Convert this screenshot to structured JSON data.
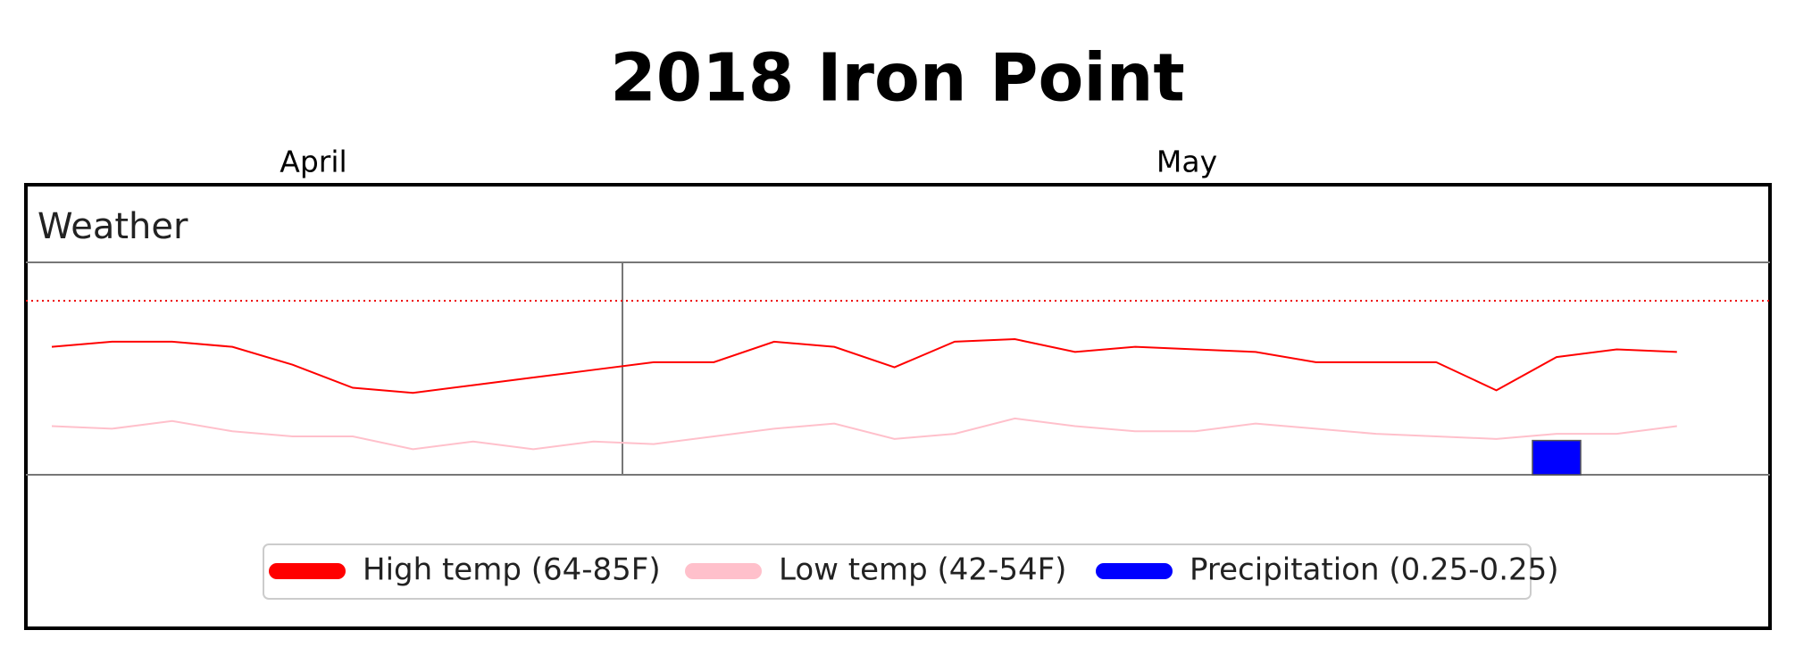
{
  "chart_data": {
    "type": "line",
    "title": "2018 Iron Point",
    "months": [
      "April",
      "May"
    ],
    "panel_title": "Weather",
    "ylim": [
      32,
      115
    ],
    "y2lim": [
      0,
      1.55
    ],
    "hline": 100,
    "series": [
      {
        "name": "High temp (64-85F)",
        "color": "#ff0000",
        "values": [
          82,
          84,
          84,
          82,
          75,
          66,
          64,
          67,
          70,
          73,
          76,
          76,
          84,
          82,
          74,
          84,
          85,
          80,
          82,
          81,
          80,
          76,
          76,
          76,
          65,
          78,
          81,
          80
        ]
      },
      {
        "name": "Low temp (42-54F)",
        "color": "#ffc0cb",
        "values": [
          51,
          50,
          53,
          49,
          47,
          47,
          42,
          45,
          42,
          45,
          44,
          47,
          50,
          52,
          46,
          48,
          54,
          51,
          49,
          49,
          52,
          50,
          48,
          47,
          46,
          48,
          48,
          51
        ]
      },
      {
        "name": "Precipitation (0.25-0.25)",
        "color": "#0000ff",
        "type": "bar",
        "axis": "y2",
        "values": [
          0,
          0,
          0,
          0,
          0,
          0,
          0,
          0,
          0,
          0,
          0,
          0,
          0,
          0,
          0,
          0,
          0,
          0,
          0,
          0,
          0,
          0,
          0,
          0,
          0,
          0.25,
          0,
          0
        ]
      }
    ]
  }
}
